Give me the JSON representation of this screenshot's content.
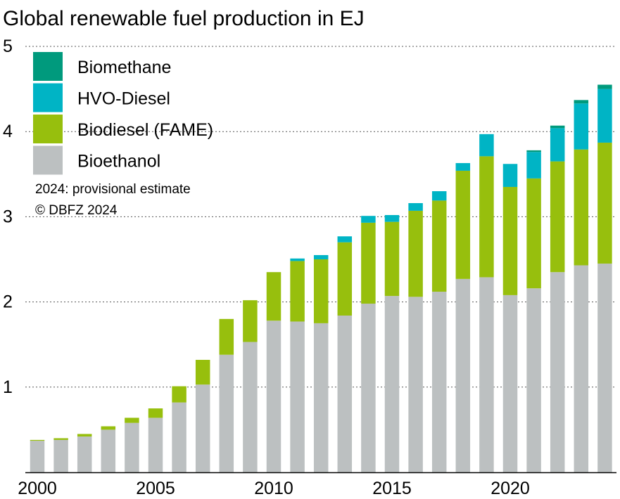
{
  "chart_data": {
    "type": "bar",
    "stacked": true,
    "title": "Global renewable fuel production in EJ",
    "xlabel": "",
    "ylabel": "",
    "ylim": [
      0,
      5
    ],
    "yticks": [
      1,
      2,
      3,
      4,
      5
    ],
    "grid": "horizontal-dotted",
    "categories": [
      2000,
      2001,
      2002,
      2003,
      2004,
      2005,
      2006,
      2007,
      2008,
      2009,
      2010,
      2011,
      2012,
      2013,
      2014,
      2015,
      2016,
      2017,
      2018,
      2019,
      2020,
      2021,
      2022,
      2023,
      2024
    ],
    "xtick_labels": [
      "2000",
      "2005",
      "2010",
      "2015",
      "2020"
    ],
    "xtick_values": [
      2000,
      2005,
      2010,
      2015,
      2020
    ],
    "series": [
      {
        "name": "Bioethanol",
        "color": "#bcc0c1",
        "values": [
          0.37,
          0.38,
          0.42,
          0.5,
          0.58,
          0.64,
          0.82,
          1.03,
          1.38,
          1.53,
          1.78,
          1.77,
          1.75,
          1.84,
          1.98,
          2.07,
          2.06,
          2.12,
          2.27,
          2.29,
          2.08,
          2.16,
          2.35,
          2.43,
          2.45
        ]
      },
      {
        "name": "Biodiesel (FAME)",
        "color": "#97bf0d",
        "values": [
          0.01,
          0.02,
          0.03,
          0.04,
          0.06,
          0.11,
          0.19,
          0.29,
          0.42,
          0.49,
          0.57,
          0.71,
          0.75,
          0.86,
          0.95,
          0.87,
          1.01,
          1.07,
          1.27,
          1.42,
          1.27,
          1.29,
          1.3,
          1.36,
          1.42
        ]
      },
      {
        "name": "HVO-Diesel",
        "color": "#00b4c5",
        "values": [
          0,
          0,
          0,
          0,
          0,
          0,
          0,
          0,
          0,
          0,
          0,
          0.03,
          0.05,
          0.07,
          0.08,
          0.08,
          0.09,
          0.11,
          0.09,
          0.26,
          0.27,
          0.31,
          0.39,
          0.54,
          0.63
        ]
      },
      {
        "name": "Biomethane",
        "color": "#009a7d",
        "values": [
          0,
          0,
          0,
          0,
          0,
          0,
          0,
          0,
          0,
          0,
          0,
          0,
          0,
          0,
          0,
          0,
          0,
          0,
          0,
          0,
          0,
          0.02,
          0.03,
          0.04,
          0.05
        ]
      }
    ],
    "legend": {
      "placement": "top-left",
      "order": [
        "Biomethane",
        "HVO-Diesel",
        "Biodiesel (FAME)",
        "Bioethanol"
      ]
    },
    "notes": [
      "2024: provisional estimate",
      "© DBFZ 2024"
    ]
  }
}
